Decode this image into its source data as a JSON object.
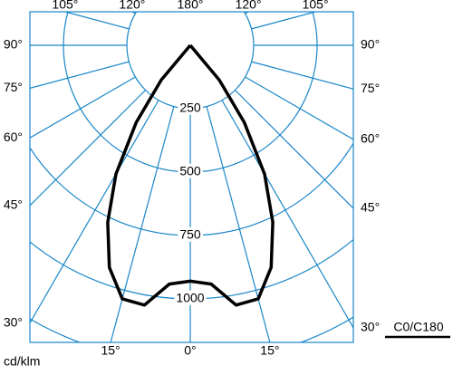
{
  "chart_data": {
    "type": "polar",
    "unit_label": "cd/klm",
    "rlim": [
      0,
      1250
    ],
    "rticks": [
      250,
      500,
      750,
      1000
    ],
    "angleticks": [
      {
        "value": -105,
        "label": "105°"
      },
      {
        "value": -120,
        "label": "120°"
      },
      {
        "value": 180,
        "label": "180°"
      },
      {
        "value": 120,
        "label": "120°"
      },
      {
        "value": 105,
        "label": "105°"
      },
      {
        "value": -90,
        "label": "90°"
      },
      {
        "value": -75,
        "label": "75°"
      },
      {
        "value": -60,
        "label": "60°"
      },
      {
        "value": -45,
        "label": "45°"
      },
      {
        "value": -30,
        "label": "30°"
      },
      {
        "value": 90,
        "label": "90°"
      },
      {
        "value": 75,
        "label": "75°"
      },
      {
        "value": 60,
        "label": "60°"
      },
      {
        "value": 45,
        "label": "45°"
      },
      {
        "value": 30,
        "label": "30°"
      },
      {
        "value": -15,
        "label": "15°"
      },
      {
        "value": 0,
        "label": "0°"
      },
      {
        "value": 15,
        "label": "15°"
      }
    ],
    "grid_color": "#1a86c8",
    "series": [
      {
        "name": "C0/C180",
        "color": "#000000",
        "x": [
          -45,
          -40,
          -35,
          -30,
          -25,
          -20,
          -15,
          -10,
          -5,
          0,
          5,
          10,
          15,
          20,
          25,
          30,
          35,
          40,
          45
        ],
        "values": [
          0,
          178,
          372,
          586,
          770,
          932,
          1035,
          1040,
          945,
          930,
          945,
          1040,
          1035,
          932,
          770,
          586,
          372,
          178,
          0
        ]
      }
    ]
  }
}
